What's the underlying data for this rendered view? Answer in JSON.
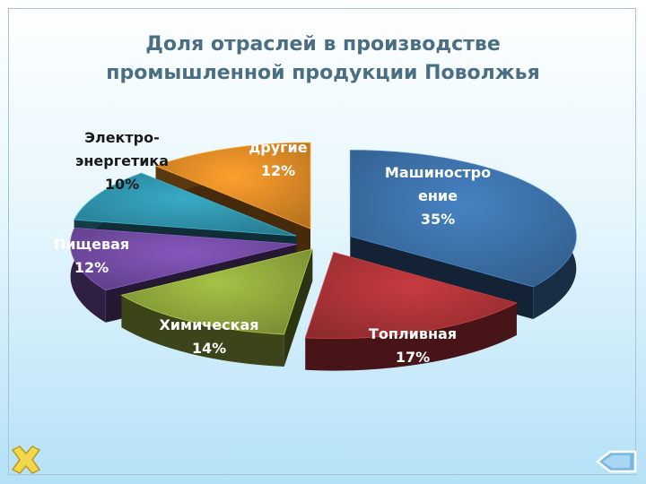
{
  "title_line1": "Доля отраслей в производстве",
  "title_line2": "промышленной продукции Поволжья",
  "chart_data": {
    "type": "pie",
    "title": "Доля отраслей в производстве промышленной продукции Поволжья",
    "slices": [
      {
        "lines": [
          "Машиностро",
          "ение"
        ],
        "value_label": "35%",
        "value": 35,
        "color": "#3b6ea5"
      },
      {
        "lines": [
          "Топливная"
        ],
        "value_label": "17%",
        "value": 17,
        "color": "#a83236"
      },
      {
        "lines": [
          "Химическая"
        ],
        "value_label": "14%",
        "value": 14,
        "color": "#8da43b"
      },
      {
        "lines": [
          "Пищевая"
        ],
        "value_label": "12%",
        "value": 12,
        "color": "#714aa0"
      },
      {
        "lines": [
          "Электро-",
          "энергетика"
        ],
        "value_label": "10%",
        "value": 10,
        "color": "#2f91a8"
      },
      {
        "lines": [
          "другие"
        ],
        "value_label": "12%",
        "value": 12,
        "color": "#d98726"
      }
    ]
  },
  "nav": {
    "close_icon": "close-x-icon",
    "back_icon": "back-arrow-icon",
    "close_color": "#f2d64b",
    "back_color": "#7ab8e0"
  }
}
